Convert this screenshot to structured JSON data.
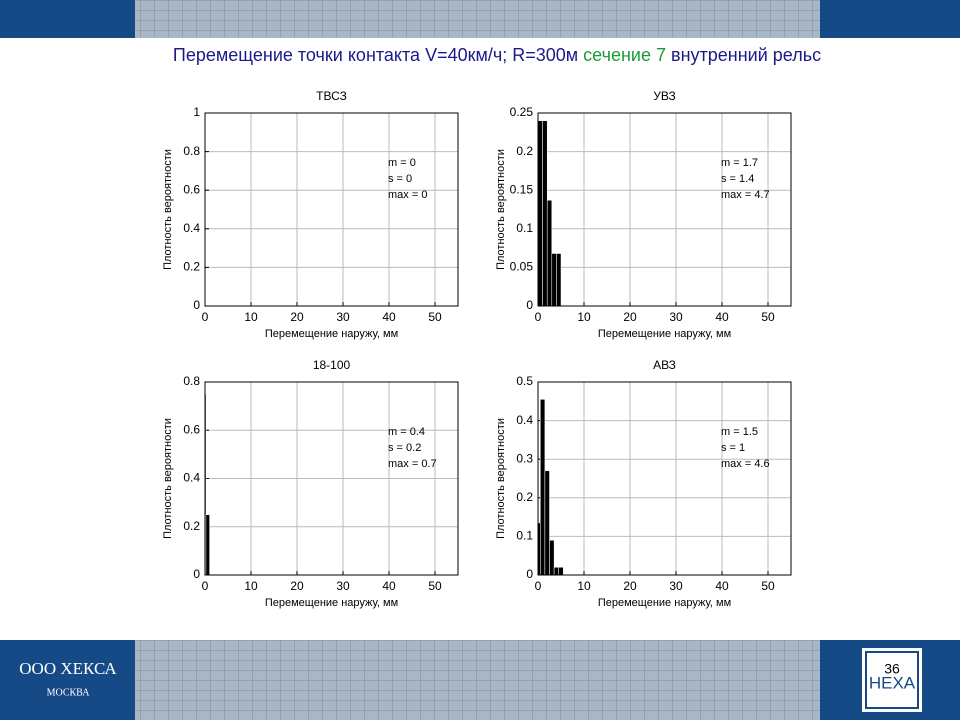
{
  "slide": {
    "title": [
      "Перемещение точки контакта  V=40км/ч; R=300м",
      "сечение 7",
      "внутренний рельс"
    ],
    "company": "ООО ХЕКСА",
    "city": "МОСКВА",
    "logo": "НЕХА",
    "page_number": "36"
  },
  "chart_data": [
    {
      "type": "histogram",
      "title": "ТВСЗ",
      "xlabel": "Перемещение наружу, мм",
      "ylabel": "Плотность вероятности",
      "xlim": [
        0,
        55
      ],
      "xticks": [
        0,
        10,
        20,
        30,
        40,
        50
      ],
      "ylim": [
        0,
        1
      ],
      "yticks": [
        0,
        0.2,
        0.4,
        0.6,
        0.8,
        1
      ],
      "grid": true,
      "color": "#000000",
      "annotations": [
        "m = 0",
        "s  = 0",
        "max  = 0"
      ]
    },
    {
      "type": "histogram",
      "title": "УВЗ",
      "xlabel": "Перемещение наружу, мм",
      "ylabel": "Плотность вероятности",
      "xlim": [
        0,
        55
      ],
      "xticks": [
        0,
        10,
        20,
        30,
        40,
        50
      ],
      "ylim": [
        0,
        0.25
      ],
      "yticks": [
        0,
        0.05,
        0.1,
        0.15,
        0.2,
        0.25
      ],
      "grid": true,
      "color": "#000000",
      "bins": [
        0,
        1,
        2,
        3,
        4,
        5
      ],
      "values": [
        0.24,
        0.24,
        0.137,
        0.068,
        0.068
      ],
      "annotations": [
        "m = 1.7",
        "s  = 1.4",
        "max  = 4.7"
      ]
    },
    {
      "type": "histogram",
      "title": "18-100",
      "xlabel": "Перемещение наружу, мм",
      "ylabel": "Плотность вероятности",
      "xlim": [
        0,
        55
      ],
      "xticks": [
        0,
        10,
        20,
        30,
        40,
        50
      ],
      "ylim": [
        0,
        0.8
      ],
      "yticks": [
        0,
        0.2,
        0.4,
        0.6,
        0.8
      ],
      "grid": true,
      "color": "#000000",
      "bins": [
        0,
        0.2,
        1
      ],
      "values": [
        0.75,
        0.25
      ],
      "annotations": [
        "m = 0.4",
        "s  = 0.2",
        "max  = 0.7"
      ]
    },
    {
      "type": "histogram",
      "title": "АВЗ",
      "xlabel": "Перемещение наружу, мм",
      "ylabel": "Плотность вероятности",
      "xlim": [
        0,
        55
      ],
      "xticks": [
        0,
        10,
        20,
        30,
        40,
        50
      ],
      "ylim": [
        0,
        0.5
      ],
      "yticks": [
        0,
        0.1,
        0.2,
        0.3,
        0.4,
        0.5
      ],
      "grid": true,
      "color": "#000000",
      "bins": [
        0,
        0.5,
        1.5,
        2.5,
        3.5,
        4.5,
        5.5
      ],
      "values": [
        0.135,
        0.455,
        0.27,
        0.09,
        0.02,
        0.02
      ],
      "annotations": [
        "m = 1.5",
        "s  = 1",
        "max  = 4.6"
      ]
    }
  ]
}
